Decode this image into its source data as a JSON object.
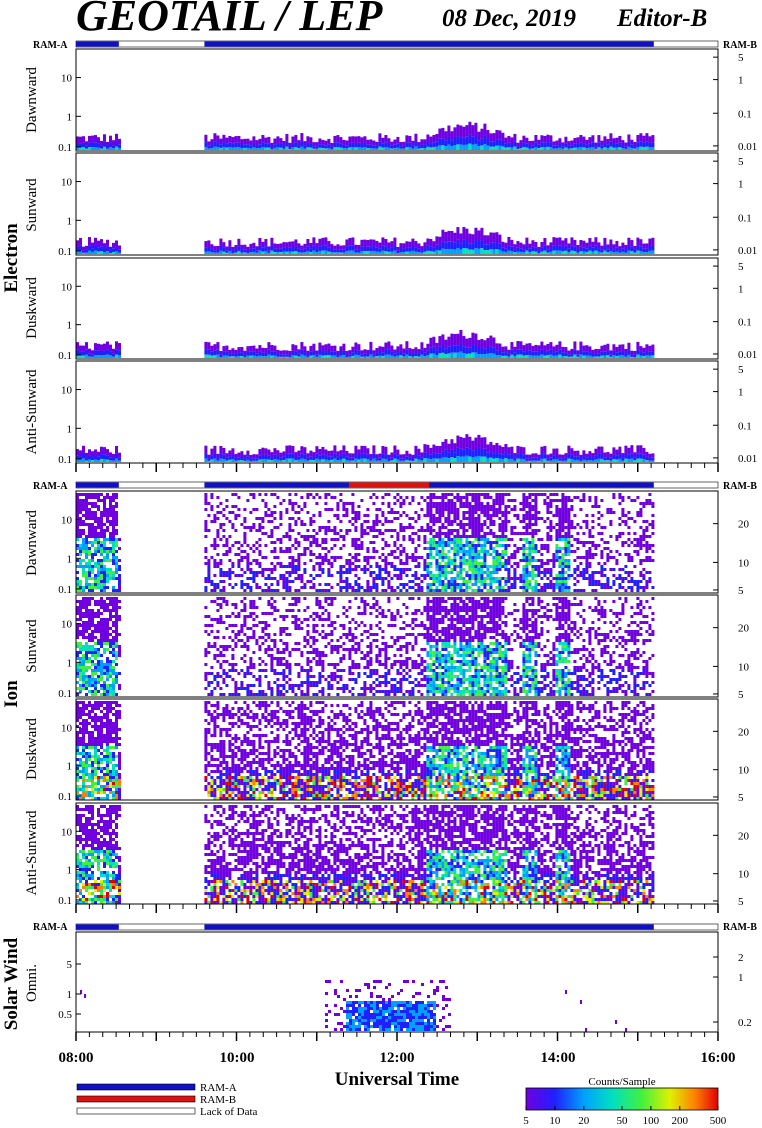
{
  "header": {
    "title": "GEOTAIL / LEP",
    "date": "08 Dec, 2019",
    "editor": "Editor-B"
  },
  "colors": {
    "ram_a": "#1010c8",
    "ram_b": "#e01010",
    "lack": "#ffffff",
    "scale": [
      "#7000e0",
      "#2020ff",
      "#00a0ff",
      "#00e0c0",
      "#40f040",
      "#e0f000",
      "#ff8000",
      "#e00000"
    ]
  },
  "ram_labels": {
    "left": "RAM-A",
    "right": "RAM-B"
  },
  "groups": [
    {
      "name": "Electron"
    },
    {
      "name": "Ion"
    },
    {
      "name": "Solar Wind"
    }
  ],
  "panels": [
    {
      "label": "Dawnward",
      "left_ticks": [
        "10",
        "1",
        "0.1"
      ],
      "right_ticks": [
        "5",
        "1",
        "0.1",
        "0.01"
      ]
    },
    {
      "label": "Sunward",
      "left_ticks": [
        "10",
        "1",
        "0.1"
      ],
      "right_ticks": [
        "5",
        "1",
        "0.1",
        "0.01"
      ]
    },
    {
      "label": "Duskward",
      "left_ticks": [
        "10",
        "1",
        "0.1"
      ],
      "right_ticks": [
        "5",
        "1",
        "0.1",
        "0.01"
      ]
    },
    {
      "label": "Anti-Sunward",
      "left_ticks": [
        "10",
        "1",
        "0.1"
      ],
      "right_ticks": [
        "5",
        "1",
        "0.1",
        "0.01"
      ]
    },
    {
      "label": "Dawnward",
      "left_ticks": [
        "10",
        "1",
        "0.1"
      ],
      "right_ticks": [
        "20",
        "10",
        "5"
      ]
    },
    {
      "label": "Sunward",
      "left_ticks": [
        "10",
        "1",
        "0.1"
      ],
      "right_ticks": [
        "20",
        "10",
        "5"
      ]
    },
    {
      "label": "Duskward",
      "left_ticks": [
        "10",
        "1",
        "0.1"
      ],
      "right_ticks": [
        "20",
        "10",
        "5"
      ]
    },
    {
      "label": "Anti-Sunward",
      "left_ticks": [
        "10",
        "1",
        "0.1"
      ],
      "right_ticks": [
        "20",
        "10",
        "5"
      ]
    },
    {
      "label": "Omni.",
      "left_ticks": [
        "5",
        "1",
        "0.5"
      ],
      "right_ticks": [
        "2",
        "1",
        "0.2"
      ]
    }
  ],
  "x_axis": {
    "label": "Universal Time",
    "ticks": [
      "08:00",
      "10:00",
      "12:00",
      "14:00",
      "16:00"
    ]
  },
  "legend": {
    "ram_a": "RAM-A",
    "ram_b": "RAM-B",
    "lack": "Lack of Data"
  },
  "colorbar": {
    "title": "Counts/Sample",
    "ticks": [
      "5",
      "10",
      "20",
      "50",
      "100",
      "200",
      "500"
    ]
  },
  "chart_data": {
    "type": "heatmap",
    "x_range": [
      "08:00",
      "16:00"
    ],
    "data_intervals": [
      [
        "08:00",
        "08:32"
      ],
      [
        "09:36",
        "15:12"
      ]
    ],
    "ram_b_interval_ion": [
      "11:24",
      "12:24"
    ],
    "colorbar_range": [
      5,
      500
    ]
  }
}
